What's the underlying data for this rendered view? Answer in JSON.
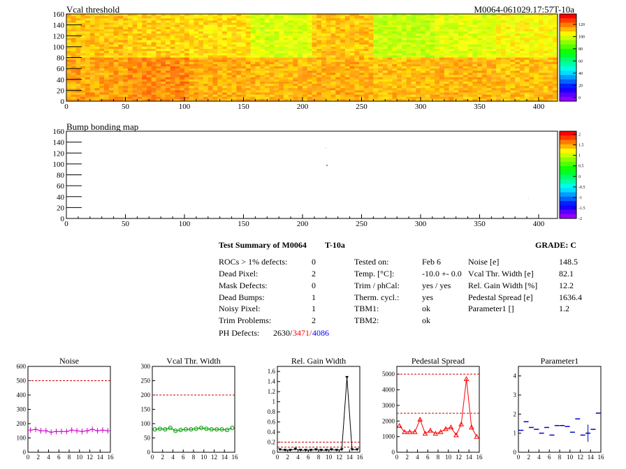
{
  "header": {
    "title": "Vcal threshold",
    "module_id": "M0064-061029.17:57T-10a",
    "bump_title": "Bump bonding map"
  },
  "maps": {
    "x_ticks": [
      "0",
      "50",
      "100",
      "150",
      "200",
      "250",
      "300",
      "350",
      "400"
    ],
    "y_ticks": [
      "0",
      "20",
      "40",
      "60",
      "80",
      "100",
      "120",
      "140",
      "160"
    ],
    "vcal_palette_ticks": [
      "0",
      "20",
      "40",
      "60",
      "80",
      "100",
      "120"
    ],
    "bump_palette_ticks": [
      "-2",
      "-1.5",
      "-1",
      "-0.5",
      "0",
      "0.5",
      "1",
      "1.5",
      "2"
    ]
  },
  "summary": {
    "title": "Test Summary of M0064",
    "test": "T-10a",
    "grade": "GRADE:  C",
    "rows": [
      {
        "label": "ROCs > 1% defects:",
        "value": "0"
      },
      {
        "label": "Dead Pixel:",
        "value": "2"
      },
      {
        "label": "Mask Defects:",
        "value": "0"
      },
      {
        "label": "Dead Bumps:",
        "value": "1"
      },
      {
        "label": "Noisy Pixel:",
        "value": "1"
      },
      {
        "label": "Trim Problems:",
        "value": "2"
      }
    ],
    "ph_label": "PH Defects:",
    "ph_values": [
      "2630/",
      "3471/",
      "4086"
    ],
    "ph_colors": [
      "#000000",
      "#ff0000",
      "#0000ff"
    ],
    "mid_rows": [
      {
        "label": "Tested on:",
        "value": "Feb 6"
      },
      {
        "label": "Temp. [°C]:",
        "value": "-10.0 +- 0.0"
      },
      {
        "label": "Trim / phCal:",
        "value": "yes / yes"
      },
      {
        "label": "Therm. cycl.:",
        "value": "yes"
      },
      {
        "label": "TBM1:",
        "value": "ok"
      },
      {
        "label": "TBM2:",
        "value": "ok"
      }
    ],
    "right_rows": [
      {
        "label": "Noise [e]",
        "value": "148.5"
      },
      {
        "label": "Vcal Thr. Width [e]",
        "value": "82.1"
      },
      {
        "label": "Rel. Gain Width [%]",
        "value": "12.2"
      },
      {
        "label": "Pedestal Spread [e]",
        "value": "1636.4"
      },
      {
        "label": "Parameter1 []",
        "value": "1.2"
      }
    ]
  },
  "chart_data": [
    {
      "type": "line",
      "title": "Noise",
      "color": "#cc00cc",
      "marker": "plus",
      "x": [
        0,
        1,
        2,
        3,
        4,
        5,
        6,
        7,
        8,
        9,
        10,
        11,
        12,
        13,
        14,
        15
      ],
      "values": [
        155,
        160,
        150,
        150,
        140,
        145,
        145,
        145,
        155,
        150,
        145,
        150,
        160,
        150,
        155,
        150
      ],
      "ylim": [
        0,
        600
      ],
      "yticks": [
        "0",
        "100",
        "200",
        "300",
        "400",
        "500",
        "600"
      ],
      "xticks": [
        "0",
        "2",
        "4",
        "6",
        "8",
        "10",
        "12",
        "14",
        "16"
      ],
      "xlim": [
        0,
        16
      ],
      "limits": [
        500
      ]
    },
    {
      "type": "line",
      "title": "Vcal Thr. Width",
      "color": "#009900",
      "marker": "circle",
      "x": [
        0,
        1,
        2,
        3,
        4,
        5,
        6,
        7,
        8,
        9,
        10,
        11,
        12,
        13,
        14,
        15
      ],
      "values": [
        80,
        82,
        80,
        85,
        75,
        78,
        80,
        80,
        82,
        85,
        82,
        80,
        80,
        80,
        78,
        85
      ],
      "ylim": [
        0,
        300
      ],
      "yticks": [
        "0",
        "50",
        "100",
        "150",
        "200",
        "250",
        "300"
      ],
      "xticks": [
        "0",
        "2",
        "4",
        "6",
        "8",
        "10",
        "12",
        "14",
        "16"
      ],
      "xlim": [
        0,
        16
      ],
      "limits": [
        200
      ]
    },
    {
      "type": "line",
      "title": "Rel. Gain Width",
      "color": "#000000",
      "marker": "triangle-down",
      "x": [
        0,
        1,
        2,
        3,
        4,
        5,
        6,
        7,
        8,
        9,
        10,
        11,
        12,
        13,
        14,
        15
      ],
      "values": [
        0.05,
        0.04,
        0.04,
        0.06,
        0.04,
        0.04,
        0.04,
        0.05,
        0.04,
        0.04,
        0.05,
        0.04,
        0.05,
        1.48,
        0.05,
        0.05
      ],
      "ylim": [
        0,
        1.7
      ],
      "yticks": [
        "0",
        "0.2",
        "0.4",
        "0.6",
        "0.8",
        "1",
        "1.2",
        "1.4",
        "1.6"
      ],
      "xticks": [
        "0",
        "2",
        "4",
        "6",
        "8",
        "10",
        "12",
        "14",
        "16"
      ],
      "xlim": [
        0,
        16
      ],
      "limits": [
        0.1,
        0.2
      ]
    },
    {
      "type": "line",
      "title": "Pedestal Spread",
      "color": "#ff0000",
      "marker": "triangle-up",
      "x": [
        0,
        1,
        2,
        3,
        4,
        5,
        6,
        7,
        8,
        9,
        10,
        11,
        12,
        13,
        14,
        15
      ],
      "values": [
        1700,
        1300,
        1300,
        1300,
        2100,
        1200,
        1400,
        1200,
        1300,
        1500,
        1600,
        1100,
        1800,
        4700,
        1600,
        1000
      ],
      "ylim": [
        0,
        5500
      ],
      "yticks": [
        "0",
        "1000",
        "2000",
        "3000",
        "4000",
        "5000"
      ],
      "xticks": [
        "0",
        "2",
        "4",
        "6",
        "8",
        "10",
        "12",
        "14",
        "16"
      ],
      "xlim": [
        0,
        16
      ],
      "limits": [
        2500,
        5000
      ]
    },
    {
      "type": "scatter",
      "title": "Parameter1",
      "color": "#0000cc",
      "marker": "hbar",
      "x": [
        0,
        1,
        2,
        3,
        4,
        5,
        6,
        7,
        8,
        9,
        10,
        11,
        12,
        13,
        14,
        15
      ],
      "values": [
        1.15,
        1.6,
        1.3,
        1.2,
        1.0,
        1.3,
        0.9,
        1.4,
        1.4,
        1.35,
        1.05,
        1.75,
        0.9,
        1.0,
        1.2,
        2.05
      ],
      "errors": [
        0,
        0,
        0,
        0,
        0,
        0,
        0,
        0,
        0,
        0,
        0,
        0,
        0,
        0.45,
        0,
        0
      ],
      "ylim": [
        0,
        4.5
      ],
      "yticks": [
        "0",
        "1",
        "2",
        "3",
        "4"
      ],
      "xticks": [
        "0",
        "2",
        "4",
        "6",
        "8",
        "10",
        "12",
        "14",
        "16"
      ],
      "xlim": [
        0,
        16
      ],
      "limits": []
    }
  ]
}
